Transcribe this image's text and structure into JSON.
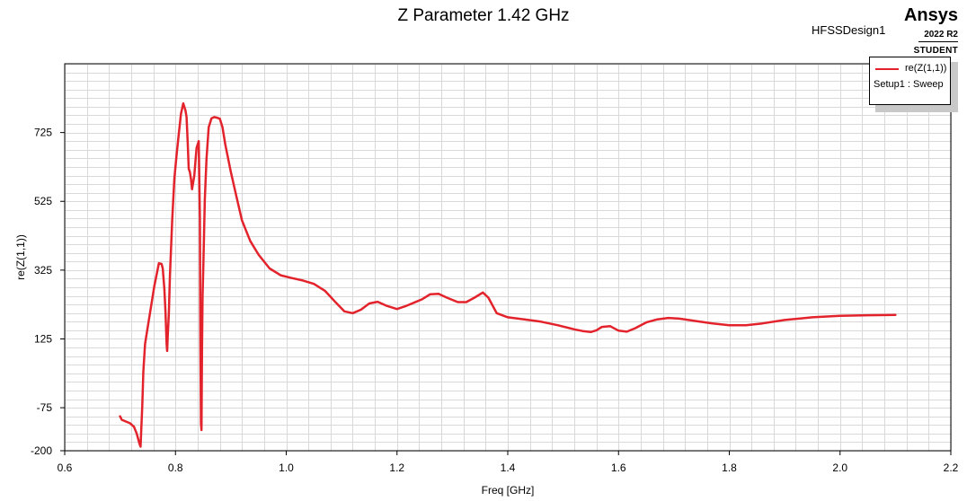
{
  "header": {
    "title": "Z Parameter 1.42 GHz",
    "design_name": "HFSSDesign1",
    "brand": "Ansys",
    "version": "2022 R2",
    "edition": "STUDENT"
  },
  "legend": {
    "series_label": "re(Z(1,1))",
    "setup_label": "Setup1 : Sweep"
  },
  "colors": {
    "series": "#e3232c",
    "grid": "#d9d9d9",
    "frame": "#000000"
  },
  "chart_data": {
    "type": "line",
    "xlabel": "Freq [GHz]",
    "ylabel": "re(Z(1,1))",
    "xlim": [
      0.6,
      2.2
    ],
    "ylim": [
      -200,
      925
    ],
    "x_ticks": [
      0.6,
      0.8,
      1.0,
      1.2,
      1.4,
      1.6,
      1.8,
      2.0,
      2.2
    ],
    "x_tick_labels": [
      "0.6",
      "0.8",
      "1.0",
      "1.2",
      "1.4",
      "1.6",
      "1.8",
      "2.0",
      "2.2"
    ],
    "y_ticks": [
      -200,
      -75,
      125,
      325,
      525,
      725
    ],
    "y_tick_labels": [
      "-200",
      "-75",
      "125",
      "325",
      "525",
      "725"
    ],
    "grid": true,
    "legend_position": "top-right",
    "series": [
      {
        "name": "re(Z(1,1))",
        "x": [
          0.7,
          0.703,
          0.71,
          0.718,
          0.725,
          0.73,
          0.735,
          0.737,
          0.738,
          0.74,
          0.742,
          0.745,
          0.748,
          0.755,
          0.762,
          0.77,
          0.775,
          0.777,
          0.78,
          0.782,
          0.784,
          0.785,
          0.786,
          0.788,
          0.79,
          0.794,
          0.798,
          0.802,
          0.806,
          0.81,
          0.814,
          0.818,
          0.82,
          0.822,
          0.824,
          0.826,
          0.828,
          0.83,
          0.834,
          0.838,
          0.842,
          0.844,
          0.845,
          0.846,
          0.847,
          0.848,
          0.849,
          0.85,
          0.853,
          0.856,
          0.86,
          0.865,
          0.87,
          0.875,
          0.88,
          0.885,
          0.89,
          0.895,
          0.9,
          0.91,
          0.92,
          0.935,
          0.95,
          0.97,
          0.99,
          1.01,
          1.03,
          1.05,
          1.07,
          1.09,
          1.105,
          1.12,
          1.135,
          1.15,
          1.165,
          1.18,
          1.2,
          1.215,
          1.23,
          1.245,
          1.26,
          1.275,
          1.29,
          1.31,
          1.325,
          1.34,
          1.355,
          1.365,
          1.38,
          1.4,
          1.43,
          1.46,
          1.49,
          1.52,
          1.535,
          1.55,
          1.56,
          1.57,
          1.585,
          1.6,
          1.615,
          1.63,
          1.65,
          1.67,
          1.69,
          1.71,
          1.74,
          1.77,
          1.8,
          1.83,
          1.86,
          1.9,
          1.95,
          2.0,
          2.05,
          2.1
        ],
        "y": [
          -100,
          -110,
          -115,
          -120,
          -130,
          -150,
          -180,
          -188,
          -150,
          -70,
          30,
          110,
          140,
          210,
          280,
          345,
          343,
          330,
          270,
          200,
          110,
          90,
          130,
          200,
          310,
          470,
          590,
          660,
          720,
          780,
          810,
          790,
          770,
          700,
          620,
          610,
          590,
          560,
          600,
          680,
          700,
          480,
          100,
          -120,
          -140,
          100,
          250,
          320,
          530,
          650,
          740,
          766,
          770,
          768,
          765,
          740,
          690,
          650,
          610,
          540,
          470,
          410,
          370,
          330,
          310,
          302,
          295,
          285,
          265,
          230,
          205,
          200,
          210,
          228,
          233,
          222,
          212,
          220,
          230,
          240,
          255,
          256,
          245,
          232,
          232,
          245,
          260,
          245,
          200,
          188,
          182,
          175,
          165,
          153,
          148,
          145,
          150,
          160,
          162,
          149,
          146,
          156,
          173,
          182,
          186,
          184,
          177,
          170,
          165,
          165,
          170,
          180,
          188,
          192,
          194,
          195
        ]
      }
    ]
  }
}
